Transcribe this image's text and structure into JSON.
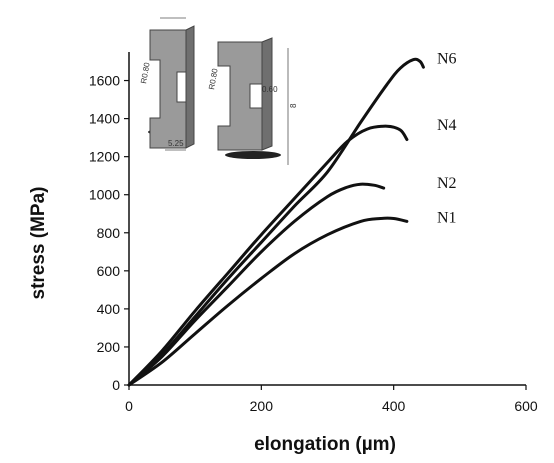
{
  "chart_data": {
    "type": "line",
    "xlabel": "elongation (µm)",
    "ylabel": "stress (MPa)",
    "xlim": [
      0,
      600
    ],
    "ylim": [
      0,
      1750
    ],
    "xticks": [
      0,
      200,
      400,
      600
    ],
    "yticks": [
      0,
      200,
      400,
      600,
      800,
      1000,
      1200,
      1400,
      1600
    ],
    "grid": false,
    "series": [
      {
        "name": "N1",
        "x": [
          0,
          50,
          100,
          150,
          200,
          250,
          300,
          350,
          380,
          400,
          420
        ],
        "y": [
          0,
          120,
          270,
          420,
          560,
          690,
          790,
          860,
          875,
          875,
          860
        ]
      },
      {
        "name": "N2",
        "x": [
          0,
          50,
          100,
          150,
          200,
          250,
          300,
          330,
          350,
          370,
          385
        ],
        "y": [
          0,
          150,
          340,
          520,
          700,
          860,
          990,
          1040,
          1055,
          1050,
          1035
        ]
      },
      {
        "name": "N4",
        "x": [
          0,
          50,
          100,
          150,
          200,
          250,
          300,
          330,
          360,
          390,
          410,
          420
        ],
        "y": [
          0,
          180,
          390,
          590,
          790,
          980,
          1170,
          1280,
          1345,
          1360,
          1340,
          1290
        ]
      },
      {
        "name": "N6",
        "x": [
          0,
          50,
          100,
          150,
          200,
          250,
          300,
          350,
          390,
          410,
          430,
          440,
          445
        ],
        "y": [
          0,
          160,
          360,
          560,
          750,
          940,
          1120,
          1380,
          1580,
          1665,
          1710,
          1700,
          1670
        ]
      }
    ]
  },
  "inset": {
    "dimensions": [
      "R0.80",
      "5.25",
      "R0.80",
      "0.60",
      "8"
    ]
  }
}
